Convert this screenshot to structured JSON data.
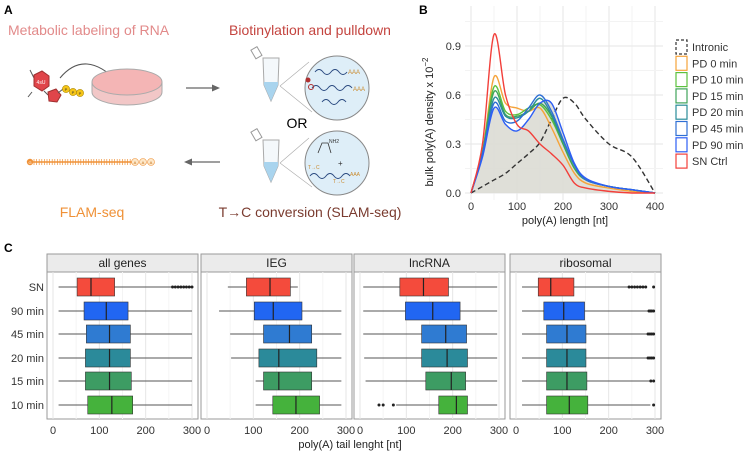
{
  "panel_labels": {
    "a": "A",
    "b": "B",
    "c": "C"
  },
  "panel_a": {
    "metabolic_labeling": "Metabolic labeling of RNA",
    "biotinylation": "Biotinylation and pulldown",
    "or": "OR",
    "slam": "T→C conversion (SLAM-seq)",
    "flam": "FLAM-seq",
    "nucleoside": "4sU",
    "phosphate": "P",
    "polyA": "AAA",
    "tc": "T→C",
    "nh2": "NH2",
    "plus": "+",
    "flam_start": "G",
    "flam_end": "A",
    "colors": {
      "metabolic": "#e28a8a",
      "biotin": "#c4443f",
      "slam": "#7a3b2f",
      "flam": "#ef9137",
      "tube": "#bfe0f2"
    }
  },
  "chart_data": [
    {
      "type": "line",
      "xlabel": "poly(A) length [nt]",
      "ylabel": "bulk poly(A) density x 10",
      "ylabel_exponent": "−2",
      "xlim": [
        0,
        400
      ],
      "ylim": [
        0,
        0.9
      ],
      "xticks": [
        "0",
        "100",
        "200",
        "300",
        "400"
      ],
      "yticks": [
        "0.0",
        "0.3",
        "0.6",
        "0.9"
      ],
      "grid": true,
      "legend_placement": "right",
      "x": [
        0,
        25,
        50,
        75,
        100,
        125,
        150,
        175,
        200,
        225,
        250,
        300,
        350,
        400
      ],
      "series": [
        {
          "name": "Intronic",
          "color": "#333333",
          "dashed": true,
          "values": [
            0,
            0.04,
            0.08,
            0.12,
            0.18,
            0.24,
            0.31,
            0.45,
            0.58,
            0.55,
            0.45,
            0.3,
            0.22,
            0
          ]
        },
        {
          "name": "PD 0 min",
          "color": "#f5a33a",
          "values": [
            0,
            0.25,
            0.71,
            0.55,
            0.52,
            0.5,
            0.52,
            0.4,
            0.25,
            0.12,
            0.06,
            0.03,
            0.01,
            0
          ]
        },
        {
          "name": "PD 10 min",
          "color": "#5cc13e",
          "values": [
            0,
            0.25,
            0.65,
            0.5,
            0.48,
            0.52,
            0.54,
            0.45,
            0.3,
            0.15,
            0.08,
            0.04,
            0.02,
            0
          ]
        },
        {
          "name": "PD 15 min",
          "color": "#3fa45a",
          "values": [
            0,
            0.25,
            0.62,
            0.48,
            0.47,
            0.5,
            0.55,
            0.47,
            0.3,
            0.15,
            0.08,
            0.04,
            0.02,
            0
          ]
        },
        {
          "name": "PD 20 min",
          "color": "#2a8d9a",
          "values": [
            0,
            0.24,
            0.58,
            0.47,
            0.46,
            0.5,
            0.58,
            0.48,
            0.32,
            0.17,
            0.08,
            0.04,
            0.02,
            0
          ]
        },
        {
          "name": "PD 45 min",
          "color": "#2e6fd4",
          "values": [
            0,
            0.24,
            0.55,
            0.44,
            0.44,
            0.52,
            0.6,
            0.5,
            0.33,
            0.17,
            0.08,
            0.04,
            0.02,
            0
          ]
        },
        {
          "name": "PD 90 min",
          "color": "#2d5ef5",
          "values": [
            0,
            0.22,
            0.52,
            0.42,
            0.38,
            0.45,
            0.55,
            0.55,
            0.37,
            0.18,
            0.09,
            0.04,
            0.02,
            0
          ]
        },
        {
          "name": "SN Ctrl",
          "color": "#f23f3a",
          "values": [
            0,
            0.3,
            0.97,
            0.6,
            0.42,
            0.38,
            0.3,
            0.24,
            0.17,
            0.06,
            0.03,
            0.01,
            0,
            0
          ]
        }
      ],
      "shaded_area_color": "#dcdcd4"
    },
    {
      "type": "boxplot",
      "xlabel": "poly(A) tail lenght [nt]",
      "xlim": [
        0,
        300
      ],
      "xticks": [
        "0",
        "100",
        "200",
        "300"
      ],
      "grid": true,
      "categories": [
        "SN",
        "90 min",
        "45 min",
        "20 min",
        "15 min",
        "10 min"
      ],
      "colors": [
        "#f44b3c",
        "#2166f2",
        "#2f7bd2",
        "#2b8a9a",
        "#3d9c63",
        "#45b23c"
      ],
      "facets": [
        {
          "name": "all genes",
          "boxes": [
            {
              "stats": [
                12,
                52,
                82,
                133,
                255
              ],
              "outliers": [
                258,
                264,
                270,
                276,
                282,
                288,
                294,
                300
              ]
            },
            {
              "stats": [
                12,
                67,
                115,
                162,
                300
              ],
              "outliers": []
            },
            {
              "stats": [
                12,
                72,
                122,
                167,
                300
              ],
              "outliers": []
            },
            {
              "stats": [
                12,
                70,
                122,
                167,
                300
              ],
              "outliers": []
            },
            {
              "stats": [
                12,
                70,
                122,
                169,
                300
              ],
              "outliers": []
            },
            {
              "stats": [
                12,
                75,
                127,
                172,
                300
              ],
              "outliers": []
            }
          ]
        },
        {
          "name": "IEG",
          "boxes": [
            {
              "stats": [
                45,
                85,
                136,
                180,
                196
              ],
              "outliers": []
            },
            {
              "stats": [
                26,
                102,
                143,
                205,
                290
              ],
              "outliers": []
            },
            {
              "stats": [
                50,
                122,
                178,
                226,
                290
              ],
              "outliers": []
            },
            {
              "stats": [
                52,
                112,
                155,
                237,
                290
              ],
              "outliers": []
            },
            {
              "stats": [
                105,
                122,
                155,
                226,
                290
              ],
              "outliers": []
            },
            {
              "stats": [
                105,
                142,
                192,
                243,
                290
              ],
              "outliers": []
            }
          ]
        },
        {
          "name": "lncRNA",
          "boxes": [
            {
              "stats": [
                7,
                86,
                137,
                191,
                296
              ],
              "outliers": []
            },
            {
              "stats": [
                7,
                98,
                157,
                216,
                296
              ],
              "outliers": []
            },
            {
              "stats": [
                7,
                133,
                185,
                230,
                296
              ],
              "outliers": []
            },
            {
              "stats": [
                9,
                133,
                188,
                232,
                296
              ],
              "outliers": []
            },
            {
              "stats": [
                12,
                142,
                197,
                228,
                296
              ],
              "outliers": []
            },
            {
              "stats": [
                78,
                170,
                208,
                232,
                296
              ],
              "outliers": [
                41,
                50,
                72
              ]
            }
          ]
        },
        {
          "name": "ribosomal",
          "boxes": [
            {
              "stats": [
                13,
                48,
                75,
                125,
                241
              ],
              "outliers": [
                244,
                250,
                256,
                262,
                268,
                274,
                280,
                297
              ]
            },
            {
              "stats": [
                13,
                60,
                103,
                148,
                285
              ],
              "outliers": [
                287,
                290,
                293,
                297
              ]
            },
            {
              "stats": [
                13,
                66,
                110,
                151,
                283
              ],
              "outliers": [
                285,
                289,
                293,
                297
              ]
            },
            {
              "stats": [
                13,
                66,
                110,
                151,
                283
              ],
              "outliers": [
                285,
                289,
                293,
                297
              ]
            },
            {
              "stats": [
                13,
                66,
                110,
                153,
                288
              ],
              "outliers": [
                291,
                297
              ]
            },
            {
              "stats": [
                13,
                66,
                115,
                155,
                290
              ],
              "outliers": [
                297
              ]
            }
          ]
        }
      ]
    }
  ]
}
